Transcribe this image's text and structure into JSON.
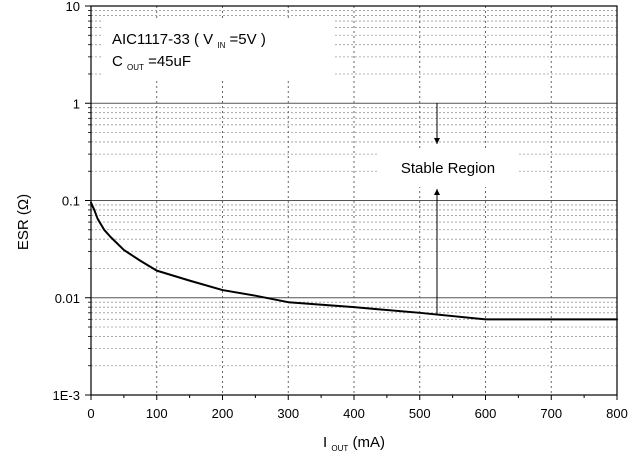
{
  "chart_data": {
    "type": "line",
    "title_parts": {
      "device": "AIC1117-33",
      "vin_symbol": "V",
      "vin_sub": "IN",
      "vin_value": "=5V"
    },
    "cout_parts": {
      "symbol": "C",
      "sub": "OUT",
      "value": "=45uF"
    },
    "xlabel_parts": {
      "symbol": "I",
      "sub": "OUT",
      "unit": " (mA)"
    },
    "ylabel": "ESR (Ω)",
    "annotation": "Stable Region",
    "x_ticks": [
      "0",
      "100",
      "200",
      "300",
      "400",
      "500",
      "600",
      "700",
      "800"
    ],
    "y_ticks": [
      "1E-3",
      "0.01",
      "0.1",
      "1",
      "10"
    ],
    "xlim": [
      0,
      800
    ],
    "ylim_log10": [
      -3,
      1
    ],
    "y_scale": "log",
    "grid": true,
    "series": [
      {
        "x": [
          0,
          5,
          10,
          20,
          30,
          50,
          75,
          100,
          150,
          200,
          250,
          300,
          400,
          500,
          600,
          800
        ],
        "y": [
          0.095,
          0.08,
          0.065,
          0.05,
          0.042,
          0.031,
          0.024,
          0.019,
          0.015,
          0.012,
          0.0105,
          0.009,
          0.008,
          0.007,
          0.006,
          0.006
        ]
      }
    ],
    "colors": {
      "line": "#000000",
      "grid_major": "#555555",
      "grid_minor": "#9a9a9a",
      "axis": "#000000"
    }
  }
}
